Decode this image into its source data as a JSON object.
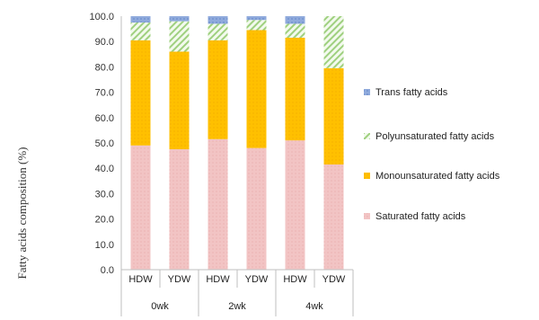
{
  "chart_data": {
    "type": "bar",
    "stacked": true,
    "ylabel": "Fatty acids composition (%)",
    "ylim": [
      0,
      100
    ],
    "yticks": [
      "0.0",
      "10.0",
      "20.0",
      "30.0",
      "40.0",
      "50.0",
      "60.0",
      "70.0",
      "80.0",
      "90.0",
      "100.0"
    ],
    "groups": [
      {
        "label": "0wk",
        "categories": [
          "HDW",
          "YDW"
        ]
      },
      {
        "label": "2wk",
        "categories": [
          "HDW",
          "YDW"
        ]
      },
      {
        "label": "4wk",
        "categories": [
          "HDW",
          "YDW"
        ]
      }
    ],
    "categories": [
      "HDW",
      "YDW",
      "HDW",
      "YDW",
      "HDW",
      "YDW"
    ],
    "series": [
      {
        "name": "Saturated fatty acids",
        "color": "#f2c4c4",
        "values": [
          49.0,
          47.5,
          51.5,
          48.0,
          51.0,
          41.5
        ]
      },
      {
        "name": "Monounsaturated fatty acids",
        "color": "#ffc000",
        "values": [
          41.5,
          38.5,
          39.0,
          46.5,
          40.5,
          38.0
        ]
      },
      {
        "name": "Polyunsaturated fatty acids",
        "color": "#c6e0b4",
        "values": [
          7.0,
          12.0,
          6.5,
          4.0,
          5.5,
          20.5
        ]
      },
      {
        "name": "Trans fatty acids",
        "color": "#8faadc",
        "values": [
          2.5,
          2.0,
          3.0,
          1.5,
          3.0,
          0.0
        ]
      }
    ],
    "legend_order": [
      "Trans fatty acids",
      "Polyunsaturated fatty acids",
      "Monounsaturated fatty acids",
      "Saturated fatty acids"
    ],
    "legend_position": "right",
    "grid": false
  }
}
